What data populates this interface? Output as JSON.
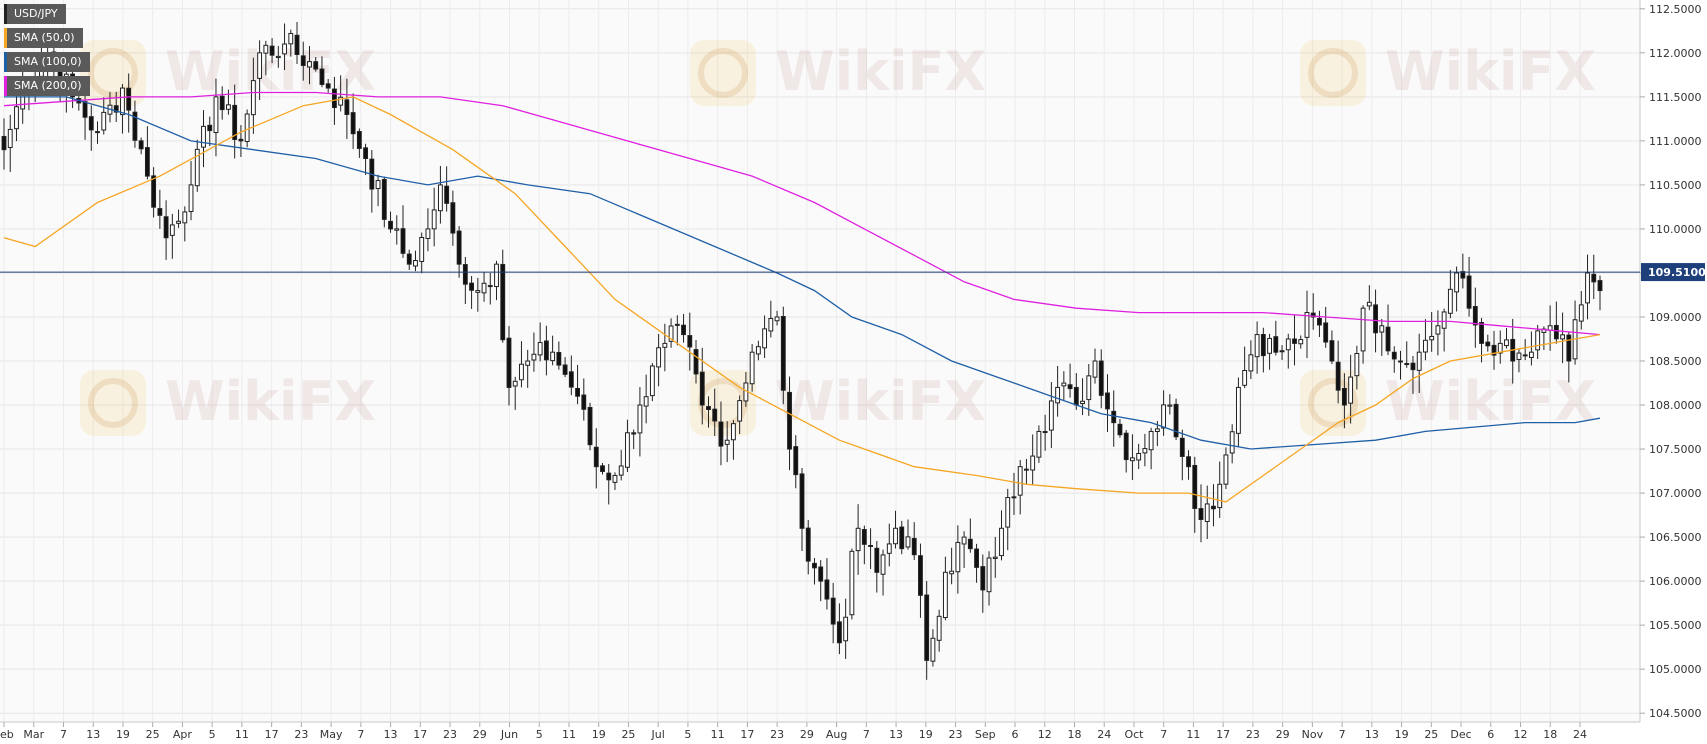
{
  "chart_data": {
    "type": "candlestick",
    "instrument": "USD/JPY",
    "current_price": 109.51,
    "current_price_label": "109.5100",
    "ylim": [
      104.4,
      112.6
    ],
    "y_ticks": [
      "112.5000",
      "112.0000",
      "111.5000",
      "111.0000",
      "110.5000",
      "110.0000",
      "109.5000",
      "109.0000",
      "108.5000",
      "108.0000",
      "107.5000",
      "107.0000",
      "106.5000",
      "106.0000",
      "105.5000",
      "105.0000",
      "104.5000"
    ],
    "x_ticks": [
      "Feb",
      "Mar",
      "7",
      "13",
      "19",
      "25",
      "Apr",
      "5",
      "11",
      "17",
      "23",
      "May",
      "7",
      "13",
      "17",
      "23",
      "29",
      "Jun",
      "5",
      "11",
      "19",
      "25",
      "Jul",
      "5",
      "11",
      "17",
      "23",
      "29",
      "Aug",
      "7",
      "13",
      "19",
      "23",
      "Sep",
      "6",
      "12",
      "18",
      "24",
      "Oct",
      "7",
      "11",
      "17",
      "23",
      "29",
      "Nov",
      "7",
      "13",
      "19",
      "25",
      "Dec",
      "6",
      "12",
      "18",
      "24"
    ],
    "legend": [
      {
        "name": "USD/JPY",
        "color": "#222222"
      },
      {
        "name": "SMA (50,0)",
        "color": "#f5a623"
      },
      {
        "name": "SMA (100,0)",
        "color": "#1f5fa6"
      },
      {
        "name": "SMA (200,0)",
        "color": "#e020e0"
      }
    ],
    "close_anchors": [
      {
        "i": 0,
        "c": 110.9
      },
      {
        "i": 3,
        "c": 111.6
      },
      {
        "i": 7,
        "c": 112.0
      },
      {
        "i": 11,
        "c": 111.5
      },
      {
        "i": 15,
        "c": 111.1
      },
      {
        "i": 19,
        "c": 111.6
      },
      {
        "i": 23,
        "c": 110.6
      },
      {
        "i": 26,
        "c": 109.9
      },
      {
        "i": 30,
        "c": 110.5
      },
      {
        "i": 34,
        "c": 111.5
      },
      {
        "i": 38,
        "c": 111.0
      },
      {
        "i": 41,
        "c": 112.0
      },
      {
        "i": 45,
        "c": 112.1
      },
      {
        "i": 49,
        "c": 111.9
      },
      {
        "i": 52,
        "c": 111.6
      },
      {
        "i": 55,
        "c": 111.3
      },
      {
        "i": 58,
        "c": 110.8
      },
      {
        "i": 62,
        "c": 110.0
      },
      {
        "i": 65,
        "c": 109.6
      },
      {
        "i": 68,
        "c": 110.0
      },
      {
        "i": 70,
        "c": 110.5
      },
      {
        "i": 73,
        "c": 109.6
      },
      {
        "i": 76,
        "c": 109.3
      },
      {
        "i": 79,
        "c": 109.6
      },
      {
        "i": 81,
        "c": 108.2
      },
      {
        "i": 84,
        "c": 108.5
      },
      {
        "i": 88,
        "c": 108.6
      },
      {
        "i": 92,
        "c": 108.1
      },
      {
        "i": 95,
        "c": 107.3
      },
      {
        "i": 98,
        "c": 107.2
      },
      {
        "i": 102,
        "c": 108.0
      },
      {
        "i": 106,
        "c": 108.7
      },
      {
        "i": 109,
        "c": 108.8
      },
      {
        "i": 112,
        "c": 108.0
      },
      {
        "i": 116,
        "c": 107.6
      },
      {
        "i": 120,
        "c": 108.6
      },
      {
        "i": 124,
        "c": 109.0
      },
      {
        "i": 126,
        "c": 107.5
      },
      {
        "i": 128,
        "c": 106.6
      },
      {
        "i": 131,
        "c": 106.0
      },
      {
        "i": 134,
        "c": 105.3
      },
      {
        "i": 137,
        "c": 106.6
      },
      {
        "i": 140,
        "c": 106.1
      },
      {
        "i": 143,
        "c": 106.6
      },
      {
        "i": 146,
        "c": 106.3
      },
      {
        "i": 148,
        "c": 105.1
      },
      {
        "i": 151,
        "c": 106.1
      },
      {
        "i": 154,
        "c": 106.5
      },
      {
        "i": 157,
        "c": 105.9
      },
      {
        "i": 160,
        "c": 106.6
      },
      {
        "i": 163,
        "c": 107.3
      },
      {
        "i": 166,
        "c": 107.7
      },
      {
        "i": 169,
        "c": 108.2
      },
      {
        "i": 172,
        "c": 108.0
      },
      {
        "i": 175,
        "c": 108.5
      },
      {
        "i": 178,
        "c": 107.8
      },
      {
        "i": 181,
        "c": 107.4
      },
      {
        "i": 184,
        "c": 107.7
      },
      {
        "i": 187,
        "c": 108.0
      },
      {
        "i": 190,
        "c": 107.3
      },
      {
        "i": 192,
        "c": 106.7
      },
      {
        "i": 195,
        "c": 107.1
      },
      {
        "i": 198,
        "c": 108.2
      },
      {
        "i": 201,
        "c": 108.8
      },
      {
        "i": 204,
        "c": 108.6
      },
      {
        "i": 207,
        "c": 108.7
      },
      {
        "i": 210,
        "c": 109.0
      },
      {
        "i": 213,
        "c": 108.5
      },
      {
        "i": 215,
        "c": 108.0
      },
      {
        "i": 218,
        "c": 109.1
      },
      {
        "i": 221,
        "c": 108.9
      },
      {
        "i": 224,
        "c": 108.5
      },
      {
        "i": 227,
        "c": 108.6
      },
      {
        "i": 230,
        "c": 108.9
      },
      {
        "i": 233,
        "c": 109.5
      },
      {
        "i": 235,
        "c": 109.1
      },
      {
        "i": 237,
        "c": 108.7
      },
      {
        "i": 240,
        "c": 108.7
      },
      {
        "i": 242,
        "c": 108.5
      },
      {
        "i": 245,
        "c": 108.6
      },
      {
        "i": 248,
        "c": 108.9
      },
      {
        "i": 251,
        "c": 108.5
      },
      {
        "i": 254,
        "c": 109.5
      },
      {
        "i": 256,
        "c": 109.3
      }
    ],
    "sma50": [
      [
        0,
        109.9
      ],
      [
        5,
        109.8
      ],
      [
        15,
        110.3
      ],
      [
        25,
        110.6
      ],
      [
        38,
        111.1
      ],
      [
        48,
        111.4
      ],
      [
        56,
        111.5
      ],
      [
        62,
        111.3
      ],
      [
        72,
        110.9
      ],
      [
        82,
        110.4
      ],
      [
        90,
        109.8
      ],
      [
        98,
        109.2
      ],
      [
        104,
        108.9
      ],
      [
        110,
        108.6
      ],
      [
        118,
        108.2
      ],
      [
        126,
        107.9
      ],
      [
        134,
        107.6
      ],
      [
        146,
        107.3
      ],
      [
        156,
        107.2
      ],
      [
        164,
        107.1
      ],
      [
        172,
        107.05
      ],
      [
        182,
        107.0
      ],
      [
        190,
        107.0
      ],
      [
        196,
        106.9
      ],
      [
        202,
        107.2
      ],
      [
        208,
        107.5
      ],
      [
        214,
        107.8
      ],
      [
        220,
        108.0
      ],
      [
        226,
        108.3
      ],
      [
        232,
        108.5
      ],
      [
        240,
        108.6
      ],
      [
        248,
        108.7
      ],
      [
        256,
        108.8
      ]
    ],
    "sma100": [
      [
        0,
        111.5
      ],
      [
        10,
        111.5
      ],
      [
        20,
        111.3
      ],
      [
        30,
        111.0
      ],
      [
        40,
        110.9
      ],
      [
        50,
        110.8
      ],
      [
        60,
        110.6
      ],
      [
        68,
        110.5
      ],
      [
        76,
        110.6
      ],
      [
        84,
        110.5
      ],
      [
        94,
        110.4
      ],
      [
        104,
        110.1
      ],
      [
        114,
        109.8
      ],
      [
        124,
        109.5
      ],
      [
        130,
        109.3
      ],
      [
        136,
        109.0
      ],
      [
        144,
        108.8
      ],
      [
        152,
        108.5
      ],
      [
        160,
        108.3
      ],
      [
        168,
        108.1
      ],
      [
        176,
        107.9
      ],
      [
        184,
        107.8
      ],
      [
        192,
        107.6
      ],
      [
        200,
        107.5
      ],
      [
        210,
        107.55
      ],
      [
        220,
        107.6
      ],
      [
        228,
        107.7
      ],
      [
        236,
        107.75
      ],
      [
        244,
        107.8
      ],
      [
        252,
        107.8
      ],
      [
        256,
        107.85
      ]
    ],
    "sma200": [
      [
        0,
        111.4
      ],
      [
        10,
        111.45
      ],
      [
        20,
        111.5
      ],
      [
        30,
        111.5
      ],
      [
        40,
        111.55
      ],
      [
        50,
        111.55
      ],
      [
        60,
        111.5
      ],
      [
        70,
        111.5
      ],
      [
        80,
        111.4
      ],
      [
        90,
        111.2
      ],
      [
        100,
        111.0
      ],
      [
        110,
        110.8
      ],
      [
        120,
        110.6
      ],
      [
        130,
        110.3
      ],
      [
        138,
        110.0
      ],
      [
        146,
        109.7
      ],
      [
        154,
        109.4
      ],
      [
        162,
        109.2
      ],
      [
        172,
        109.1
      ],
      [
        182,
        109.05
      ],
      [
        192,
        109.05
      ],
      [
        202,
        109.05
      ],
      [
        212,
        109.0
      ],
      [
        222,
        108.95
      ],
      [
        232,
        108.95
      ],
      [
        240,
        108.9
      ],
      [
        248,
        108.85
      ],
      [
        256,
        108.8
      ]
    ]
  },
  "watermark": "WikiFX"
}
